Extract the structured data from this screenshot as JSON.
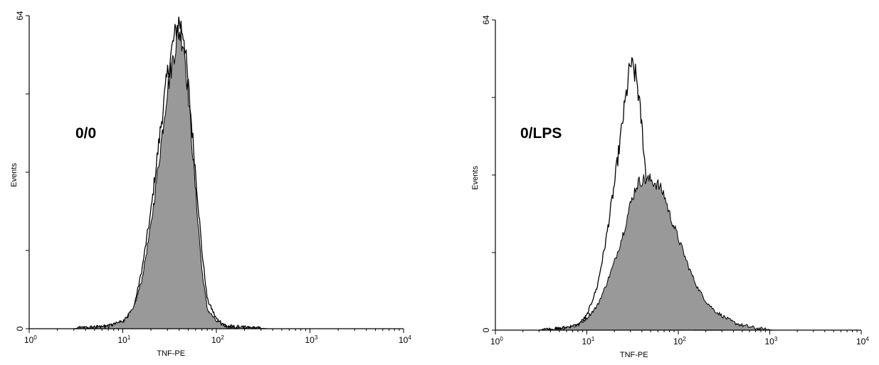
{
  "chart_data": [
    {
      "type": "area",
      "panel_label": "0/0",
      "xlabel": "TNF-PE",
      "ylabel": "Events",
      "xscale": "log",
      "xlim": [
        1,
        10000
      ],
      "ylim": [
        0,
        64
      ],
      "x_ticks": [
        {
          "base": "10",
          "exp": "0"
        },
        {
          "base": "10",
          "exp": "1"
        },
        {
          "base": "10",
          "exp": "2"
        },
        {
          "base": "10",
          "exp": "3"
        },
        {
          "base": "10",
          "exp": "4"
        }
      ],
      "y_ticks": [
        "0",
        "64"
      ],
      "grid": false,
      "series": [
        {
          "style": "open",
          "x": [
            3,
            7,
            10,
            13,
            16,
            20,
            25,
            30,
            35,
            40,
            45,
            50,
            60,
            70,
            80,
            100,
            130,
            200,
            350
          ],
          "y": [
            0,
            0.5,
            1.5,
            4,
            12,
            24,
            40,
            52,
            59,
            63,
            60,
            50,
            32,
            16,
            6,
            2,
            0.5,
            0.2,
            0
          ]
        },
        {
          "style": "filled",
          "x": [
            3,
            7,
            10,
            13,
            16,
            20,
            25,
            30,
            35,
            40,
            45,
            50,
            60,
            70,
            80,
            100,
            130,
            200,
            350
          ],
          "y": [
            0,
            0.5,
            1.5,
            4,
            10,
            21,
            36,
            49,
            56,
            61,
            58,
            48,
            28,
            12,
            4,
            1.5,
            0.4,
            0.1,
            0
          ]
        }
      ]
    },
    {
      "type": "area",
      "panel_label": "0/LPS",
      "xlabel": "TNF-PE",
      "ylabel": "Events",
      "xscale": "log",
      "xlim": [
        1,
        10000
      ],
      "ylim": [
        0,
        64
      ],
      "x_ticks": [
        {
          "base": "10",
          "exp": "0"
        },
        {
          "base": "10",
          "exp": "1"
        },
        {
          "base": "10",
          "exp": "2"
        },
        {
          "base": "10",
          "exp": "3"
        },
        {
          "base": "10",
          "exp": "4"
        }
      ],
      "y_ticks": [
        "0",
        "64"
      ],
      "grid": false,
      "series": [
        {
          "style": "open",
          "x": [
            3,
            5,
            8,
            10,
            13,
            16,
            20,
            25,
            30,
            35,
            40,
            45,
            50,
            55,
            60,
            70,
            80,
            100,
            150,
            300
          ],
          "y": [
            0,
            0.3,
            1,
            3,
            9,
            18,
            30,
            44,
            55,
            52,
            42,
            30,
            18,
            9,
            4,
            1,
            0.3,
            0.1,
            0,
            0
          ]
        },
        {
          "style": "filled",
          "x": [
            3,
            5,
            8,
            10,
            13,
            16,
            20,
            25,
            30,
            35,
            40,
            45,
            50,
            60,
            70,
            80,
            100,
            130,
            160,
            200,
            250,
            300,
            400,
            500,
            700,
            900,
            1100
          ],
          "y": [
            0,
            0.3,
            1,
            2.5,
            5,
            9,
            14,
            20,
            26,
            30,
            31,
            31,
            31,
            30,
            28,
            24,
            19,
            13,
            9,
            6,
            4,
            3,
            1.6,
            1,
            0.4,
            0.1,
            0
          ]
        }
      ]
    }
  ]
}
